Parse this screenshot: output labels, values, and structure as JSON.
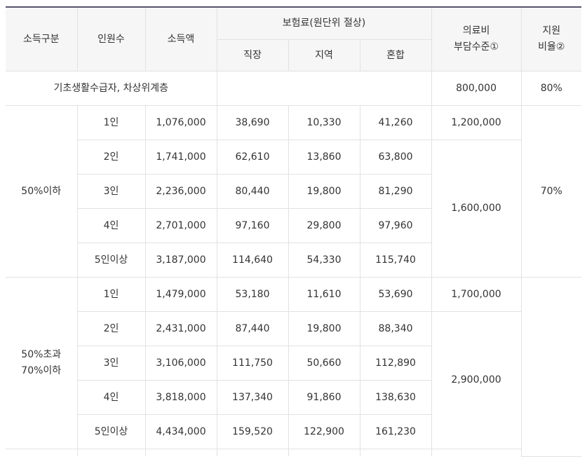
{
  "header": {
    "income_class": "소득구분",
    "members": "인원수",
    "income": "소득액",
    "premium": "보험료(원단위 절상)",
    "workplace": "직장",
    "regional": "지역",
    "mixed": "혼합",
    "medical_line1": "의료비",
    "medical_line2": "부담수준①",
    "support_line1": "지원",
    "support_line2": "비율②"
  },
  "basic": {
    "label": "기초생활수급자, 차상위계층",
    "medical": "800,000",
    "support": "80%"
  },
  "group1": {
    "label": "50%이하",
    "support": "70%",
    "medical_first": "1,200,000",
    "medical_rest": "1,600,000",
    "rows": [
      {
        "members": "1인",
        "income": "1,076,000",
        "workplace": "38,690",
        "regional": "10,330",
        "mixed": "41,260"
      },
      {
        "members": "2인",
        "income": "1,741,000",
        "workplace": "62,610",
        "regional": "13,860",
        "mixed": "63,800"
      },
      {
        "members": "3인",
        "income": "2,236,000",
        "workplace": "80,440",
        "regional": "19,800",
        "mixed": "81,290"
      },
      {
        "members": "4인",
        "income": "2,701,000",
        "workplace": "97,160",
        "regional": "29,800",
        "mixed": "97,960"
      },
      {
        "members": "5인이상",
        "income": "3,187,000",
        "workplace": "114,640",
        "regional": "54,330",
        "mixed": "115,740"
      }
    ]
  },
  "group2": {
    "label_line1": "50%초과",
    "label_line2": "70%이하",
    "support": "",
    "medical_first": "1,700,000",
    "medical_rest": "2,900,000",
    "rows": [
      {
        "members": "1인",
        "income": "1,479,000",
        "workplace": "53,180",
        "regional": "11,610",
        "mixed": "53,690"
      },
      {
        "members": "2인",
        "income": "2,431,000",
        "workplace": "87,440",
        "regional": "19,800",
        "mixed": "88,340"
      },
      {
        "members": "3인",
        "income": "3,106,000",
        "workplace": "111,750",
        "regional": "50,660",
        "mixed": "112,890"
      },
      {
        "members": "4인",
        "income": "3,818,000",
        "workplace": "137,340",
        "regional": "91,860",
        "mixed": "138,630"
      },
      {
        "members": "5인이상",
        "income": "4,434,000",
        "workplace": "159,520",
        "regional": "122,900",
        "mixed": "161,230"
      }
    ]
  }
}
